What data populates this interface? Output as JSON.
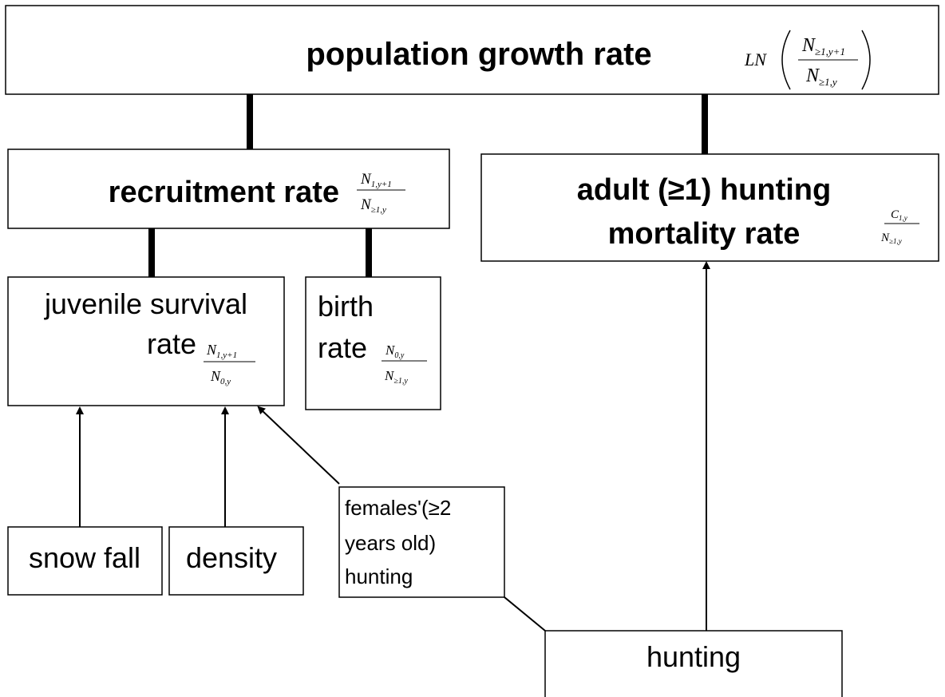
{
  "nodes": [
    {
      "label": "population growth rate",
      "formula": {
        "prefix": "LN",
        "numerator": {
          "base": "N",
          "sub": "≥1,y+1"
        },
        "denominator": {
          "base": "N",
          "sub": "≥1,y"
        }
      }
    },
    {
      "label": "recruitment rate",
      "formula": {
        "numerator": {
          "base": "N",
          "sub": "1,y+1"
        },
        "denominator": {
          "base": "N",
          "sub": "≥1,y"
        }
      }
    },
    {
      "label_lines": [
        "adult (≥1) hunting",
        "mortality rate"
      ],
      "formula": {
        "numerator": {
          "base": "C",
          "sub": "1,y"
        },
        "denominator": {
          "base": "N",
          "sub": "≥1,y"
        }
      }
    },
    {
      "label_lines": [
        "juvenile survival",
        "rate"
      ],
      "formula": {
        "numerator": {
          "base": "N",
          "sub": "1,y+1"
        },
        "denominator": {
          "base": "N",
          "sub": "0,y"
        }
      }
    },
    {
      "label_lines": [
        "birth",
        "rate"
      ],
      "formula": {
        "numerator": {
          "base": "N",
          "sub": "0,y"
        },
        "denominator": {
          "base": "N",
          "sub": "≥1,y"
        }
      }
    },
    {
      "label": "snow fall"
    },
    {
      "label": "density"
    },
    {
      "label_lines": [
        "females'(≥2",
        "years old)",
        "hunting"
      ]
    },
    {
      "label": "hunting"
    }
  ]
}
